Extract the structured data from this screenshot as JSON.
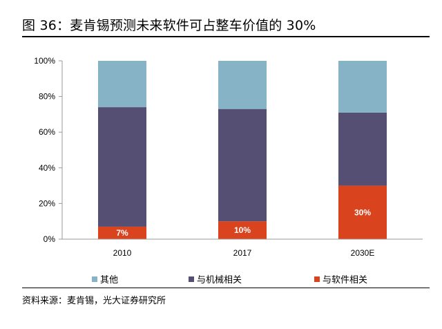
{
  "title": "图 36：麦肯锡预测未来软件可占整车价值的 30%",
  "source": "资料来源：麦肯锡，光大证券研究所",
  "colors": {
    "other": "#86b3c6",
    "machinery": "#554f73",
    "software": "#d9431e"
  },
  "chart_data": {
    "type": "bar",
    "stacked": true,
    "categories": [
      "2010",
      "2017",
      "2030E"
    ],
    "series": [
      {
        "name": "与软件相关",
        "values": [
          7,
          10,
          30
        ],
        "color": "#d9431e"
      },
      {
        "name": "与机械相关",
        "values": [
          67,
          63,
          41
        ],
        "color": "#554f73"
      },
      {
        "name": "其他",
        "values": [
          26,
          27,
          29
        ],
        "color": "#86b3c6"
      }
    ],
    "data_labels": [
      "7%",
      "10%",
      "30%"
    ],
    "y_ticks": [
      "0%",
      "20%",
      "40%",
      "60%",
      "80%",
      "100%"
    ],
    "ylim": [
      0,
      100
    ],
    "legend_position": "bottom"
  },
  "legend": [
    {
      "label": "其他",
      "color": "#86b3c6"
    },
    {
      "label": "与机械相关",
      "color": "#554f73"
    },
    {
      "label": "与软件相关",
      "color": "#d9431e"
    }
  ]
}
